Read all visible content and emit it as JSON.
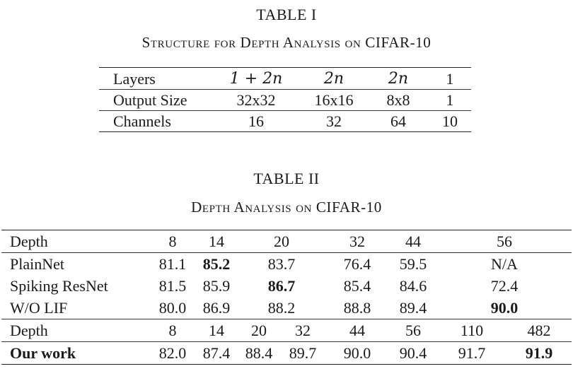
{
  "table1": {
    "label": "TABLE I",
    "caption": "Structure for Depth Analysis on CIFAR-10",
    "rows": [
      {
        "label": "Layers",
        "c1": "1 + 2n",
        "c2": "2n",
        "c3": "2n",
        "c4": "1"
      },
      {
        "label": "Output Size",
        "c1": "32x32",
        "c2": "16x16",
        "c3": "8x8",
        "c4": "1"
      },
      {
        "label": "Channels",
        "c1": "16",
        "c2": "32",
        "c3": "64",
        "c4": "10"
      }
    ]
  },
  "table2": {
    "label": "TABLE II",
    "caption": "Depth Analysis on CIFAR-10",
    "top_header": {
      "label": "Depth",
      "cols": [
        "8",
        "14",
        "20",
        "32",
        "44",
        "56"
      ]
    },
    "top_rows": [
      {
        "label": "PlainNet",
        "values": [
          "81.1",
          "85.2",
          "83.7",
          "76.4",
          "59.5",
          "N/A"
        ]
      },
      {
        "label": "Spiking ResNet",
        "values": [
          "81.5",
          "85.9",
          "86.7",
          "85.4",
          "84.6",
          "72.4"
        ]
      },
      {
        "label": "W/O LIF",
        "values": [
          "80.0",
          "86.9",
          "88.2",
          "88.8",
          "89.4",
          "90.0"
        ]
      }
    ],
    "bottom_header": {
      "label": "Depth",
      "cols": [
        "8",
        "14",
        "20",
        "32",
        "44",
        "56",
        "110",
        "482"
      ]
    },
    "bottom_row": {
      "label": "Our work",
      "values": [
        "82.0",
        "87.4",
        "88.4",
        "89.7",
        "90.0",
        "90.4",
        "91.7",
        "91.9"
      ]
    }
  }
}
